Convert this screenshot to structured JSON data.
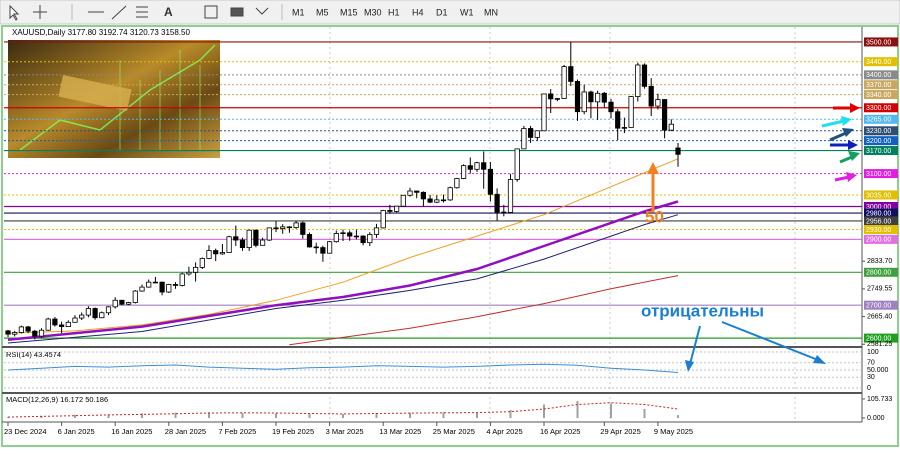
{
  "toolbar": {
    "timeframes": [
      "M1",
      "M5",
      "M15",
      "M30",
      "H1",
      "H4",
      "D1",
      "W1",
      "MN"
    ]
  },
  "chart_data": {
    "type": "candlestick",
    "title": "XAUUSD,Daily  3177.80 3192.74 3120.73 3158.50",
    "ylim": [
      2576,
      3512
    ],
    "xlim": [
      -1,
      127
    ],
    "yticks": [
      {
        "value": 2833.7,
        "label": "2833.70"
      },
      {
        "value": 2749.55,
        "label": "2749.55"
      },
      {
        "value": 2665.4,
        "label": "2665.40"
      },
      {
        "value": 2581.25,
        "label": "2581.25"
      }
    ],
    "xticks": [
      {
        "value": 0,
        "label": "23 Dec 2024"
      },
      {
        "value": 8,
        "label": "6 Jan 2025"
      },
      {
        "value": 16,
        "label": "16 Jan 2025"
      },
      {
        "value": 24,
        "label": "28 Jan 2025"
      },
      {
        "value": 32,
        "label": "7 Feb 2025"
      },
      {
        "value": 40,
        "label": "19 Feb 2025"
      },
      {
        "value": 48,
        "label": "3 Mar 2025"
      },
      {
        "value": 56,
        "label": "13 Mar 2025"
      },
      {
        "value": 64,
        "label": "25 Mar 2025"
      },
      {
        "value": 72,
        "label": "4 Apr 2025"
      },
      {
        "value": 80,
        "label": "16 Apr 2025"
      },
      {
        "value": 89,
        "label": "29 Apr 2025"
      },
      {
        "value": 97,
        "label": "9 May 2025"
      }
    ],
    "up_color": "#ffffff",
    "down_color": "#000000",
    "candles": [
      [
        2622,
        2625,
        2603,
        2612
      ],
      [
        2612,
        2622,
        2605,
        2617
      ],
      [
        2617,
        2638,
        2614,
        2634
      ],
      [
        2634,
        2637,
        2615,
        2621
      ],
      [
        2621,
        2625,
        2596,
        2606
      ],
      [
        2606,
        2630,
        2600,
        2624
      ],
      [
        2624,
        2662,
        2622,
        2658
      ],
      [
        2658,
        2664,
        2635,
        2640
      ],
      [
        2640,
        2650,
        2615,
        2635
      ],
      [
        2635,
        2654,
        2634,
        2648
      ],
      [
        2648,
        2670,
        2647,
        2661
      ],
      [
        2661,
        2678,
        2655,
        2670
      ],
      [
        2670,
        2697,
        2663,
        2690
      ],
      [
        2690,
        2693,
        2656,
        2662
      ],
      [
        2662,
        2681,
        2660,
        2677
      ],
      [
        2677,
        2697,
        2670,
        2695
      ],
      [
        2695,
        2724,
        2690,
        2715
      ],
      [
        2715,
        2716,
        2700,
        2703
      ],
      [
        2703,
        2710,
        2700,
        2708
      ],
      [
        2708,
        2746,
        2705,
        2743
      ],
      [
        2743,
        2763,
        2741,
        2755
      ],
      [
        2755,
        2778,
        2753,
        2770
      ],
      [
        2770,
        2786,
        2768,
        2770
      ],
      [
        2770,
        2772,
        2730,
        2740
      ],
      [
        2740,
        2765,
        2737,
        2763
      ],
      [
        2763,
        2770,
        2750,
        2760
      ],
      [
        2760,
        2799,
        2757,
        2795
      ],
      [
        2795,
        2817,
        2790,
        2800
      ],
      [
        2800,
        2830,
        2772,
        2815
      ],
      [
        2815,
        2845,
        2810,
        2842
      ],
      [
        2842,
        2882,
        2840,
        2866
      ],
      [
        2866,
        2872,
        2834,
        2856
      ],
      [
        2856,
        2886,
        2853,
        2860
      ],
      [
        2860,
        2911,
        2860,
        2908
      ],
      [
        2908,
        2942,
        2880,
        2898
      ],
      [
        2898,
        2905,
        2865,
        2875
      ],
      [
        2875,
        2930,
        2865,
        2928
      ],
      [
        2928,
        2930,
        2876,
        2882
      ],
      [
        2882,
        2905,
        2882,
        2898
      ],
      [
        2898,
        2935,
        2895,
        2935
      ],
      [
        2935,
        2955,
        2922,
        2933
      ],
      [
        2933,
        2946,
        2917,
        2938
      ],
      [
        2938,
        2940,
        2920,
        2936
      ],
      [
        2936,
        2956,
        2932,
        2950
      ],
      [
        2950,
        2954,
        2902,
        2915
      ],
      [
        2915,
        2921,
        2875,
        2877
      ],
      [
        2877,
        2890,
        2857,
        2875
      ],
      [
        2875,
        2881,
        2832,
        2858
      ],
      [
        2858,
        2895,
        2857,
        2893
      ],
      [
        2893,
        2927,
        2890,
        2918
      ],
      [
        2918,
        2930,
        2895,
        2920
      ],
      [
        2920,
        2927,
        2896,
        2910
      ],
      [
        2910,
        2930,
        2900,
        2910
      ],
      [
        2910,
        2913,
        2882,
        2890
      ],
      [
        2890,
        2922,
        2880,
        2915
      ],
      [
        2915,
        2947,
        2905,
        2935
      ],
      [
        2935,
        2990,
        2933,
        2988
      ],
      [
        2988,
        3005,
        2978,
        2985
      ],
      [
        2985,
        3002,
        2982,
        3001
      ],
      [
        3001,
        3035,
        3000,
        3034
      ],
      [
        3034,
        3057,
        3030,
        3047
      ],
      [
        3047,
        3048,
        3025,
        3043
      ],
      [
        3043,
        3046,
        3000,
        3023
      ],
      [
        3023,
        3035,
        3010,
        3013
      ],
      [
        3013,
        3034,
        3010,
        3020
      ],
      [
        3020,
        3036,
        3012,
        3019
      ],
      [
        3020,
        3060,
        3017,
        3057
      ],
      [
        3057,
        3087,
        3054,
        3085
      ],
      [
        3085,
        3128,
        3083,
        3124
      ],
      [
        3124,
        3149,
        3100,
        3113
      ],
      [
        3113,
        3136,
        3105,
        3133
      ],
      [
        3133,
        3167,
        3054,
        3113
      ],
      [
        3113,
        3135,
        3015,
        3037
      ],
      [
        3037,
        3055,
        2957,
        2983
      ],
      [
        2983,
        3005,
        2970,
        2982
      ],
      [
        2982,
        3099,
        2982,
        3082
      ],
      [
        3082,
        3175,
        3075,
        3175
      ],
      [
        3175,
        3245,
        3175,
        3237
      ],
      [
        3237,
        3245,
        3193,
        3210
      ],
      [
        3210,
        3230,
        3200,
        3230
      ],
      [
        3230,
        3343,
        3229,
        3342
      ],
      [
        3342,
        3357,
        3284,
        3327
      ],
      [
        3327,
        3330,
        3320,
        3328
      ],
      [
        3328,
        3430,
        3327,
        3425
      ],
      [
        3425,
        3500,
        3366,
        3380
      ],
      [
        3380,
        3386,
        3260,
        3288
      ],
      [
        3288,
        3370,
        3280,
        3348
      ],
      [
        3348,
        3352,
        3268,
        3318
      ],
      [
        3318,
        3352,
        3263,
        3344
      ],
      [
        3344,
        3348,
        3300,
        3317
      ],
      [
        3317,
        3327,
        3268,
        3288
      ],
      [
        3288,
        3296,
        3202,
        3238
      ],
      [
        3238,
        3270,
        3223,
        3240
      ],
      [
        3240,
        3336,
        3240,
        3334
      ],
      [
        3334,
        3437,
        3319,
        3430
      ],
      [
        3430,
        3435,
        3358,
        3365
      ],
      [
        3365,
        3390,
        3275,
        3305
      ],
      [
        3305,
        3343,
        3295,
        3325
      ],
      [
        3325,
        3326,
        3207,
        3232
      ],
      [
        3232,
        3265,
        3229,
        3250
      ],
      [
        3177.8,
        3192.74,
        3120.73,
        3158.5
      ]
    ],
    "levels": [
      {
        "value": 3500,
        "label": "3500.00",
        "color": "#8b1010",
        "style": "solid"
      },
      {
        "value": 3440,
        "label": "3440.00",
        "color": "#e0c000",
        "style": "dotted"
      },
      {
        "value": 3400,
        "label": "3400.00",
        "color": "#8a8a8a",
        "style": "dotted"
      },
      {
        "value": 3370,
        "label": "3370.00",
        "color": "#c8a860",
        "style": "dotted"
      },
      {
        "value": 3340,
        "label": "3340.00",
        "color": "#c8a860",
        "style": "dotted"
      },
      {
        "value": 3300,
        "label": "3300.00",
        "color": "#d00000",
        "style": "solid"
      },
      {
        "value": 3265,
        "label": "3265.00",
        "color": "#50b8f0",
        "style": "dotted"
      },
      {
        "value": 3230,
        "label": "3230.00",
        "color": "#2f4f70",
        "style": "dotted"
      },
      {
        "value": 3200,
        "label": "3200.00",
        "color": "#1060c0",
        "style": "dotted"
      },
      {
        "value": 3170,
        "label": "3170.00",
        "color": "#008060",
        "style": "solid"
      },
      {
        "value": 3100,
        "label": "3100.00",
        "color": "#e020e0",
        "style": "dotted"
      },
      {
        "value": 3035,
        "label": "3035.00",
        "color": "#e0c000",
        "style": "dotted"
      },
      {
        "value": 3000,
        "label": "3000.00",
        "color": "#8000a0",
        "style": "solid"
      },
      {
        "value": 2980,
        "label": "2980.00",
        "color": "#101060",
        "style": "solid"
      },
      {
        "value": 2956,
        "label": "2956.00",
        "color": "#404040",
        "style": "solid"
      },
      {
        "value": 2930,
        "label": "2930.00",
        "color": "#e0c000",
        "style": "dotted"
      },
      {
        "value": 2900,
        "label": "2900.00",
        "color": "#e070e0",
        "style": "solid"
      },
      {
        "value": 2800,
        "label": "2800.00",
        "color": "#40a040",
        "style": "solid"
      },
      {
        "value": 2700,
        "label": "2700.00",
        "color": "#a080c0",
        "style": "solid"
      },
      {
        "value": 2600,
        "label": "2600.00",
        "color": "#20a020",
        "style": "solid"
      }
    ],
    "ma": [
      {
        "color": "#f0a020",
        "width": 1,
        "x": [
          0,
          10,
          20,
          30,
          40,
          50,
          60,
          70,
          80,
          90,
          100
        ],
        "values": [
          2615,
          2622,
          2640,
          2672,
          2715,
          2770,
          2845,
          2910,
          2975,
          3060,
          3145
        ]
      },
      {
        "color": "#9010c0",
        "width": 2.5,
        "x": [
          0,
          20,
          40,
          50,
          60,
          70,
          80,
          90,
          95,
          100
        ],
        "values": [
          2595,
          2635,
          2700,
          2725,
          2760,
          2810,
          2880,
          2950,
          2985,
          3015
        ]
      },
      {
        "color": "#202070",
        "width": 1,
        "x": [
          0,
          20,
          40,
          50,
          60,
          70,
          80,
          90,
          95,
          100
        ],
        "values": [
          2585,
          2620,
          2690,
          2715,
          2745,
          2780,
          2840,
          2910,
          2945,
          2975
        ]
      },
      {
        "color": "#c03030",
        "width": 1,
        "x": [
          42,
          60,
          70,
          80,
          90,
          100
        ],
        "values": [
          2580,
          2630,
          2665,
          2705,
          2750,
          2790
        ]
      }
    ],
    "annotations": [
      {
        "text": "50",
        "color": "#f08020"
      },
      {
        "text": "отрицательны",
        "color": "#1a7fd0"
      }
    ],
    "rsi": {
      "label": "RSI(14) 43.4574",
      "color": "#3a8fd8",
      "ylim": [
        0,
        100
      ],
      "yticks": [
        100,
        70,
        {
          "value": 50,
          "label": "50.000"
        },
        30,
        0
      ],
      "x": [
        0,
        5,
        10,
        15,
        20,
        25,
        30,
        35,
        40,
        45,
        50,
        55,
        60,
        65,
        70,
        75,
        80,
        85,
        90,
        95,
        100
      ],
      "values": [
        50,
        55,
        60,
        58,
        62,
        64,
        58,
        55,
        52,
        56,
        58,
        62,
        60,
        58,
        60,
        64,
        66,
        63,
        55,
        50,
        43
      ]
    },
    "macd": {
      "label": "MACD(12,26,9) 16.172 50.186",
      "color": "#a0a0a0",
      "signal_color": "#d02020",
      "ylim": [
        0,
        105.733
      ],
      "yticks": [
        {
          "value": 105.733,
          "label": "105.733"
        },
        {
          "value": 0,
          "label": "0.000"
        }
      ],
      "x": [
        0,
        5,
        10,
        15,
        20,
        25,
        30,
        35,
        40,
        45,
        50,
        55,
        60,
        65,
        70,
        75,
        80,
        85,
        90,
        95,
        100
      ],
      "values": [
        5,
        12,
        18,
        20,
        25,
        30,
        32,
        28,
        25,
        22,
        22,
        28,
        30,
        32,
        30,
        45,
        75,
        95,
        80,
        50,
        16.172
      ],
      "signal": [
        5,
        9,
        13,
        17,
        20,
        24,
        28,
        29,
        28,
        25,
        23,
        25,
        27,
        29,
        30,
        35,
        50,
        75,
        85,
        75,
        50.186
      ]
    }
  }
}
